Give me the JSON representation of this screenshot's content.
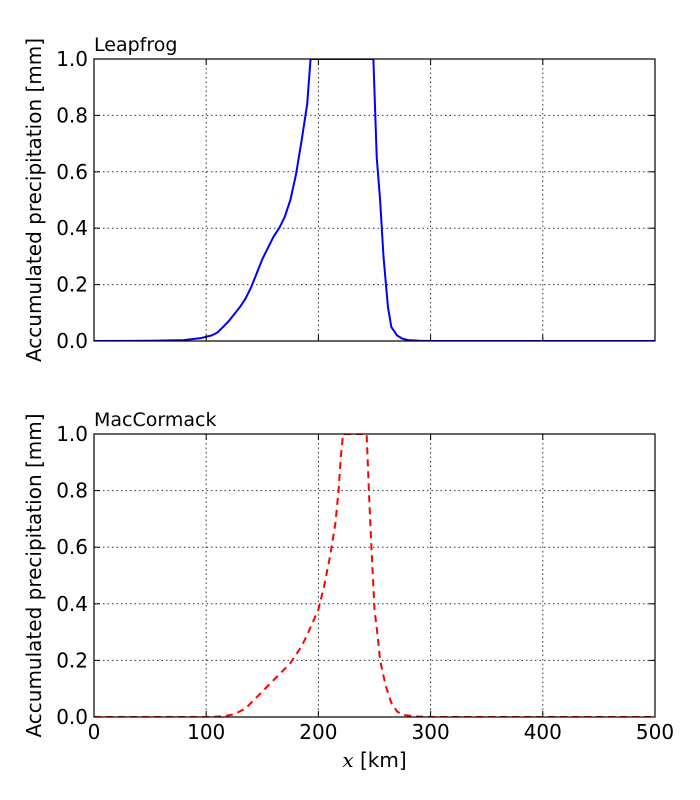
{
  "chart_data": [
    {
      "type": "line",
      "title": "Leapfrog",
      "xlabel": "",
      "ylabel": "Accumulated precipitation [mm]",
      "xlim": [
        0,
        500
      ],
      "ylim": [
        0,
        1.0
      ],
      "xticks": [
        0,
        100,
        200,
        300,
        400,
        500
      ],
      "xtick_labels": [],
      "yticks": [
        0.0,
        0.2,
        0.4,
        0.6,
        0.8,
        1.0
      ],
      "ytick_labels": [
        "0.0",
        "0.2",
        "0.4",
        "0.6",
        "0.8",
        "1.0"
      ],
      "grid": true,
      "series": [
        {
          "color": "#0000ff",
          "linestyle": "solid",
          "x": [
            0,
            50,
            80,
            95,
            105,
            110,
            115,
            120,
            130,
            135,
            140,
            145,
            150,
            160,
            165,
            170,
            175,
            180,
            185,
            190,
            193,
            200,
            210,
            220,
            230,
            240,
            249,
            252,
            255,
            258,
            262,
            265,
            270,
            275,
            280,
            290,
            300,
            500
          ],
          "y": [
            0.0,
            0.001,
            0.003,
            0.01,
            0.02,
            0.03,
            0.05,
            0.07,
            0.12,
            0.15,
            0.19,
            0.24,
            0.29,
            0.37,
            0.4,
            0.44,
            0.5,
            0.59,
            0.71,
            0.84,
            1.0,
            1.0,
            1.0,
            1.0,
            1.0,
            1.0,
            1.0,
            0.65,
            0.5,
            0.3,
            0.12,
            0.05,
            0.02,
            0.008,
            0.003,
            0.001,
            0.0,
            0.0
          ]
        }
      ]
    },
    {
      "type": "line",
      "title": "MacCormack",
      "xlabel": "x [km]",
      "xlabel_var": "x",
      "xlabel_unit": "[km]",
      "ylabel": "Accumulated precipitation [mm]",
      "xlim": [
        0,
        500
      ],
      "ylim": [
        0,
        1.0
      ],
      "xticks": [
        0,
        100,
        200,
        300,
        400,
        500
      ],
      "xtick_labels": [
        "0",
        "100",
        "200",
        "300",
        "400",
        "500"
      ],
      "yticks": [
        0.0,
        0.2,
        0.4,
        0.6,
        0.8,
        1.0
      ],
      "ytick_labels": [
        "0.0",
        "0.2",
        "0.4",
        "0.6",
        "0.8",
        "1.0"
      ],
      "grid": true,
      "series": [
        {
          "color": "#ff0000",
          "linestyle": "dashed",
          "x": [
            0,
            100,
            115,
            125,
            135,
            145,
            155,
            165,
            175,
            185,
            190,
            200,
            205,
            210,
            215,
            218,
            220,
            222,
            230,
            240,
            243,
            245,
            247,
            250,
            253,
            255,
            260,
            265,
            270,
            275,
            285,
            300,
            500
          ],
          "y": [
            0.0,
            0.0,
            0.002,
            0.01,
            0.03,
            0.07,
            0.11,
            0.15,
            0.19,
            0.25,
            0.29,
            0.38,
            0.46,
            0.56,
            0.68,
            0.8,
            0.92,
            1.0,
            1.0,
            1.0,
            1.0,
            0.8,
            0.62,
            0.38,
            0.28,
            0.2,
            0.11,
            0.05,
            0.02,
            0.008,
            0.002,
            0.0,
            0.0
          ]
        }
      ]
    }
  ]
}
